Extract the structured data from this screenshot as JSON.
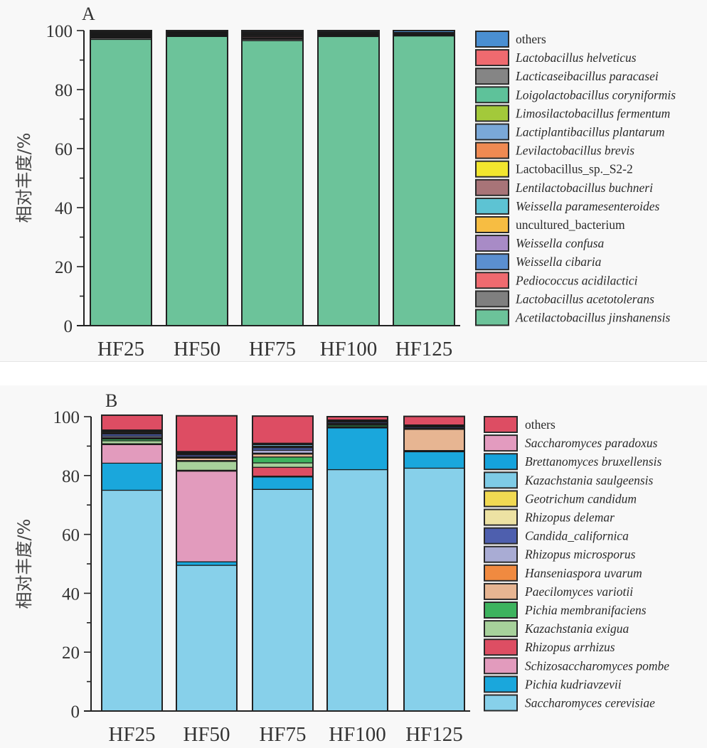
{
  "chart_data": [
    {
      "type": "bar",
      "stacked": true,
      "panel": "A",
      "title": "A",
      "xlabel": "",
      "ylabel": "相对丰度/%",
      "ylim": [
        0,
        100
      ],
      "yticks": [
        0,
        20,
        40,
        60,
        80,
        100
      ],
      "categories": [
        "HF25",
        "HF50",
        "HF75",
        "HF100",
        "HF125"
      ],
      "legend_position": "right",
      "series": [
        {
          "name": "Acetilactobacillus jinshanensis",
          "italic": true,
          "color": "#6cc39a",
          "values": [
            97.0,
            98.0,
            96.6,
            98.0,
            98.2
          ]
        },
        {
          "name": "Lactobacillus acetotolerans",
          "italic": true,
          "color": "#7f7f7f",
          "values": [
            0.5,
            0.2,
            0.5,
            0.1,
            0.1
          ]
        },
        {
          "name": "Pediococcus acidilactici",
          "italic": true,
          "color": "#ef6a6f",
          "values": [
            0.1,
            0.1,
            0.1,
            0.0,
            0.0
          ]
        },
        {
          "name": "Weissella cibaria",
          "italic": true,
          "color": "#5b8fd0",
          "values": [
            0.1,
            0.1,
            0.1,
            0.0,
            0.0
          ]
        },
        {
          "name": "Weissella confusa",
          "italic": true,
          "color": "#a88bc6",
          "values": [
            0.1,
            0.1,
            0.1,
            0.0,
            0.0
          ]
        },
        {
          "name": "uncultured_bacterium",
          "italic": false,
          "color": "#f7bd42",
          "values": [
            0.1,
            0.1,
            0.1,
            0.1,
            0.0
          ]
        },
        {
          "name": "Weissella paramesenteroides",
          "italic": true,
          "color": "#5dc3d3",
          "values": [
            0.1,
            0.1,
            0.1,
            0.0,
            0.0
          ]
        },
        {
          "name": "Lentilactobacillus buchneri",
          "italic": true,
          "color": "#a87478",
          "values": [
            0.3,
            0.3,
            0.4,
            0.3,
            0.1
          ]
        },
        {
          "name": "Lactobacillus_sp._S2-2",
          "italic": false,
          "color": "#f2e62e",
          "values": [
            0.1,
            0.1,
            0.1,
            0.0,
            0.0
          ]
        },
        {
          "name": "Levilactobacillus brevis",
          "italic": true,
          "color": "#f08a52",
          "values": [
            0.2,
            0.2,
            0.3,
            0.2,
            0.1
          ]
        },
        {
          "name": "Lactiplantibacillus plantarum",
          "italic": true,
          "color": "#7aa8d8",
          "values": [
            0.2,
            0.1,
            0.3,
            0.1,
            0.1
          ]
        },
        {
          "name": "Limosilactobacillus fermentum",
          "italic": true,
          "color": "#a3c93a",
          "values": [
            0.1,
            0.1,
            0.1,
            0.1,
            0.1
          ]
        },
        {
          "name": "Loigolactobacillus coryniformis",
          "italic": true,
          "color": "#5ec29a",
          "values": [
            0.3,
            0.1,
            0.2,
            0.2,
            0.2
          ]
        },
        {
          "name": "Lacticaseibacillus paracasei",
          "italic": true,
          "color": "#858585",
          "values": [
            0.3,
            0.1,
            0.3,
            0.3,
            0.2
          ]
        },
        {
          "name": "Lactobacillus helveticus",
          "italic": true,
          "color": "#ef6a6f",
          "values": [
            0.2,
            0.1,
            0.3,
            0.2,
            0.3
          ]
        },
        {
          "name": "others",
          "italic": false,
          "color": "#4a8fd2",
          "values": [
            0.3,
            0.2,
            0.4,
            0.4,
            0.6
          ]
        }
      ]
    },
    {
      "type": "bar",
      "stacked": true,
      "panel": "B",
      "title": "B",
      "xlabel": "",
      "ylabel": "相对丰度/%",
      "ylim": [
        0,
        100
      ],
      "yticks": [
        0,
        20,
        40,
        60,
        80,
        100
      ],
      "categories": [
        "HF25",
        "HF50",
        "HF75",
        "HF100",
        "HF125"
      ],
      "legend_position": "right",
      "series": [
        {
          "name": "Saccharomyces cerevisiae",
          "italic": true,
          "color": "#87d0ea",
          "values": [
            75.0,
            49.5,
            75.3,
            82.0,
            82.5
          ]
        },
        {
          "name": "Pichia kudriavzevii",
          "italic": true,
          "color": "#1aa7dc",
          "values": [
            9.2,
            1.2,
            4.2,
            14.2,
            5.6
          ]
        },
        {
          "name": "Schizosaccharomyces pombe",
          "italic": true,
          "color": "#e29bbd",
          "values": [
            6.3,
            30.8,
            0.3,
            0.1,
            0.1
          ]
        },
        {
          "name": "Rhizopus arrhizus",
          "italic": true,
          "color": "#dd4e63",
          "values": [
            0.3,
            0.3,
            3.0,
            0.1,
            0.1
          ]
        },
        {
          "name": "Kazachstania exigua",
          "italic": true,
          "color": "#a7d19b",
          "values": [
            1.0,
            3.0,
            1.5,
            0.2,
            0.1
          ]
        },
        {
          "name": "Pichia membranifaciens",
          "italic": true,
          "color": "#3db35e",
          "values": [
            0.6,
            0.3,
            2.0,
            0.5,
            0.1
          ]
        },
        {
          "name": "Paecilomyces variotii",
          "italic": true,
          "color": "#e7b592",
          "values": [
            0.3,
            0.8,
            1.0,
            0.2,
            7.2
          ]
        },
        {
          "name": "Hanseniaspora uvarum",
          "italic": true,
          "color": "#f08a40",
          "values": [
            0.2,
            0.2,
            0.3,
            0.1,
            0.2
          ]
        },
        {
          "name": "Rhizopus microsporus",
          "italic": true,
          "color": "#a9acd4",
          "values": [
            0.5,
            0.3,
            1.0,
            0.3,
            0.2
          ]
        },
        {
          "name": "Candida_californica",
          "italic": true,
          "color": "#4e5fae",
          "values": [
            0.7,
            0.6,
            0.8,
            0.4,
            0.4
          ]
        },
        {
          "name": "Rhizopus delemar",
          "italic": true,
          "color": "#ede2a3",
          "values": [
            0.3,
            0.3,
            0.3,
            0.2,
            0.2
          ]
        },
        {
          "name": "Geotrichum candidum",
          "italic": true,
          "color": "#f1d952",
          "values": [
            0.3,
            0.3,
            0.3,
            0.2,
            0.2
          ]
        },
        {
          "name": "Kazachstania saulgeensis",
          "italic": true,
          "color": "#7ecbe6",
          "values": [
            0.3,
            0.2,
            0.5,
            0.2,
            0.1
          ]
        },
        {
          "name": "Brettanomyces bruxellensis",
          "italic": true,
          "color": "#15a3dc",
          "values": [
            0.2,
            0.2,
            0.2,
            0.1,
            0.1
          ]
        },
        {
          "name": "Saccharomyces paradoxus",
          "italic": true,
          "color": "#e39bbf",
          "values": [
            0.3,
            0.2,
            0.3,
            0.1,
            0.1
          ]
        },
        {
          "name": "others",
          "italic": false,
          "color": "#dd4d63",
          "values": [
            5.0,
            12.1,
            9.2,
            1.1,
            2.9
          ]
        }
      ]
    }
  ]
}
